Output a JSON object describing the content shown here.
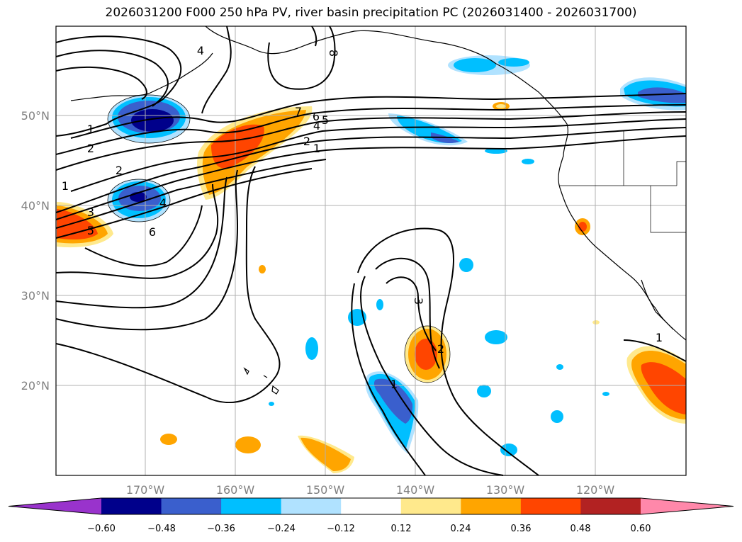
{
  "title": "2026031200 F000 250 hPa PV, river basin precipitation PC (2026031400 - 2026031700)",
  "map": {
    "lat_labels": [
      "50°N",
      "40°N",
      "30°N",
      "20°N"
    ],
    "lon_labels": [
      "170°W",
      "160°W",
      "150°W",
      "140°W",
      "130°W",
      "120°W"
    ],
    "gridlines": true,
    "pv_contour_labels": [
      "4",
      "8",
      "1",
      "2",
      "2",
      "7",
      "6",
      "5",
      "4",
      "2",
      "1",
      "1",
      "3",
      "5",
      "4",
      "6",
      "3",
      "2",
      "1",
      "1"
    ]
  },
  "colorbar": {
    "tick_labels": [
      "−0.60",
      "−0.48",
      "−0.36",
      "−0.24",
      "−0.12",
      "0.12",
      "0.24",
      "0.36",
      "0.48",
      "0.60"
    ],
    "colors": [
      "#9933cc",
      "#00008b",
      "#3a5fcd",
      "#00bfff",
      "#b0e2ff",
      "#ffffff",
      "#ffe98c",
      "#ffa500",
      "#ff4500",
      "#b22222",
      "#ff88aa"
    ]
  },
  "palette": {
    "strong_neg": "#00008b",
    "mid_neg": "#3a5fcd",
    "light_neg": "#00bfff",
    "pale_neg": "#b0e2ff",
    "pale_pos": "#ffe98c",
    "light_pos": "#ffa500",
    "strong_pos": "#ff4500",
    "contour": "#000000",
    "grid": "#b0b0b0",
    "axis_text": "#808080"
  }
}
